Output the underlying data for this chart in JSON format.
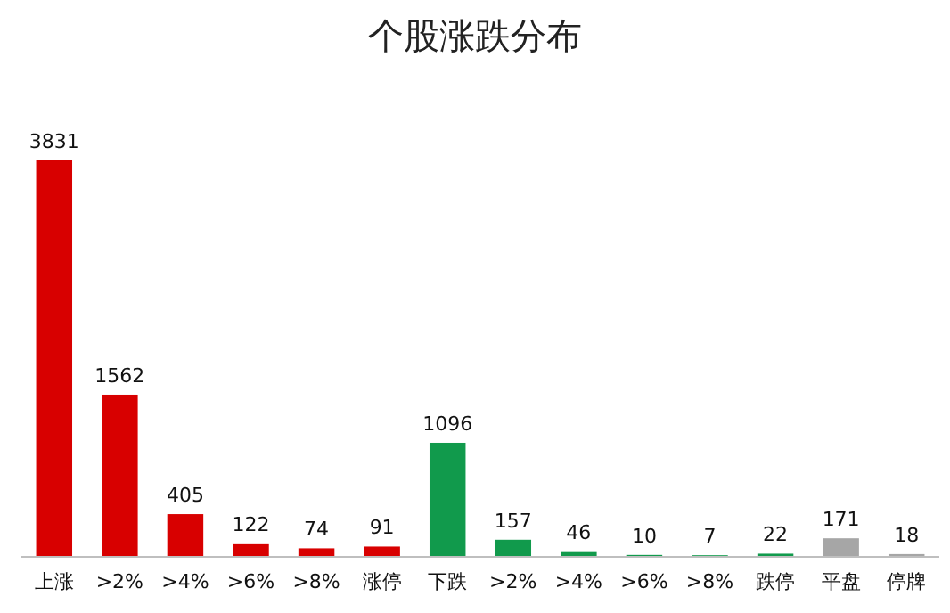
{
  "chart_data": {
    "type": "bar",
    "title": "个股涨跌分布",
    "categories": [
      "上涨",
      ">2%",
      ">4%",
      ">6%",
      ">8%",
      "涨停",
      "下跌",
      ">2%",
      ">4%",
      ">6%",
      ">8%",
      "跌停",
      "平盘",
      "停牌"
    ],
    "values": [
      3831,
      1562,
      405,
      122,
      74,
      91,
      1096,
      157,
      46,
      10,
      7,
      22,
      171,
      18
    ],
    "colors": [
      "#d80000",
      "#d80000",
      "#d80000",
      "#d80000",
      "#d80000",
      "#d80000",
      "#119a4c",
      "#119a4c",
      "#119a4c",
      "#119a4c",
      "#119a4c",
      "#119a4c",
      "#a6a6a6",
      "#a6a6a6"
    ],
    "data_labels": true
  }
}
